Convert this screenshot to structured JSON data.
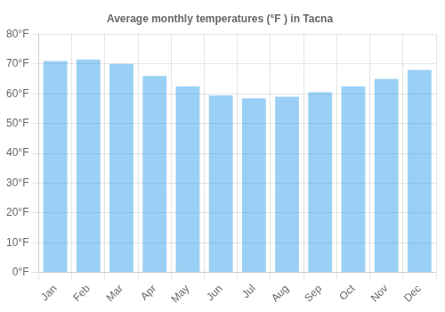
{
  "chart_data": {
    "type": "bar",
    "title": "Average monthly temperatures (°F ) in Tacna",
    "categories": [
      "Jan",
      "Feb",
      "Mar",
      "Apr",
      "May",
      "Jun",
      "Jul",
      "Aug",
      "Sep",
      "Oct",
      "Nov",
      "Dec"
    ],
    "values": [
      71,
      71.5,
      70,
      66,
      62.5,
      59.5,
      58.5,
      59,
      60.5,
      62.5,
      65,
      68
    ],
    "ylim": [
      0,
      80
    ],
    "yticks": [
      {
        "value": 0,
        "label": "0°F"
      },
      {
        "value": 10,
        "label": "10°F"
      },
      {
        "value": 20,
        "label": "20°F"
      },
      {
        "value": 30,
        "label": "30°F"
      },
      {
        "value": 40,
        "label": "40°F"
      },
      {
        "value": 50,
        "label": "50°F"
      },
      {
        "value": 60,
        "label": "60°F"
      },
      {
        "value": 70,
        "label": "70°F"
      },
      {
        "value": 80,
        "label": "80°F"
      }
    ],
    "grid": true
  }
}
